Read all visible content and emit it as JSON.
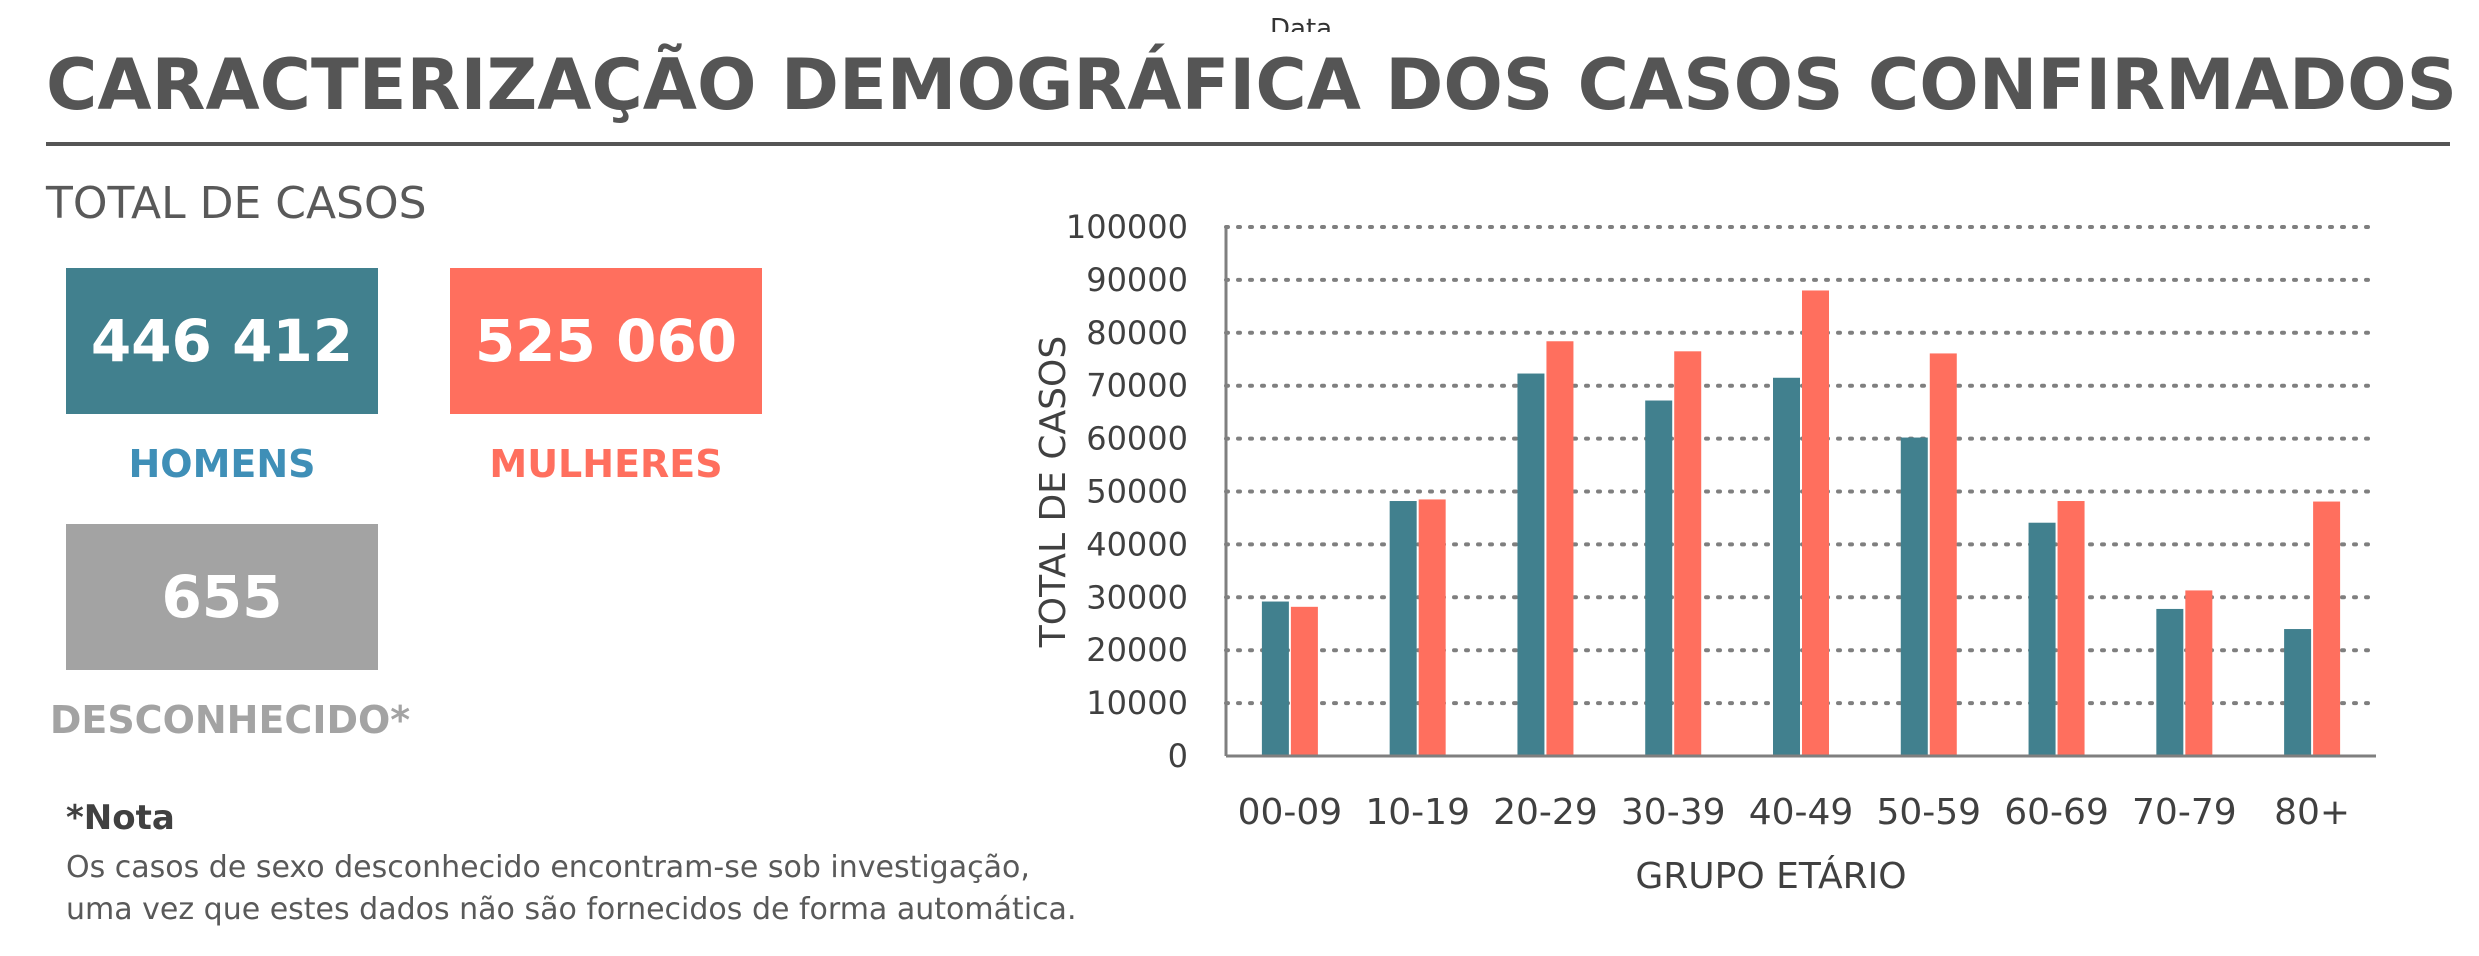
{
  "top_cut_text": "Data",
  "page_title": "CARACTERIZAÇÃO DEMOGRÁFICA DOS CASOS CONFIRMADOS",
  "totals": {
    "section_title": "TOTAL DE CASOS",
    "homens": {
      "value": "446 412",
      "label": "HOMENS",
      "color": "#41808e"
    },
    "mulheres": {
      "value": "525 060",
      "label": "MULHERES",
      "color": "#ff6f5e"
    },
    "desconhecido": {
      "value": "655",
      "label": "DESCONHECIDO*",
      "color": "#a3a3a3"
    }
  },
  "note": {
    "title": "*Nota",
    "line1": "Os casos de sexo desconhecido encontram-se sob investigação,",
    "line2": "uma vez que estes dados não são fornecidos de forma automática."
  },
  "chart_data": {
    "type": "bar",
    "title": "",
    "xlabel": "GRUPO ETÁRIO",
    "ylabel": "TOTAL DE CASOS",
    "categories": [
      "00-09",
      "10-19",
      "20-29",
      "30-39",
      "40-49",
      "50-59",
      "60-69",
      "70-79",
      "80+"
    ],
    "ylim": [
      0,
      100000
    ],
    "yticks": [
      0,
      10000,
      20000,
      30000,
      40000,
      50000,
      60000,
      70000,
      80000,
      90000,
      100000
    ],
    "grid": "horizontal-dotted",
    "legend": "none",
    "series": [
      {
        "color": "#41808e",
        "values": [
          29200,
          48200,
          72300,
          67200,
          71500,
          60200,
          44100,
          27800,
          24000
        ]
      },
      {
        "color": "#ff6f5e",
        "values": [
          28200,
          48500,
          78400,
          76500,
          88000,
          76100,
          48200,
          31300,
          48100
        ]
      }
    ]
  }
}
